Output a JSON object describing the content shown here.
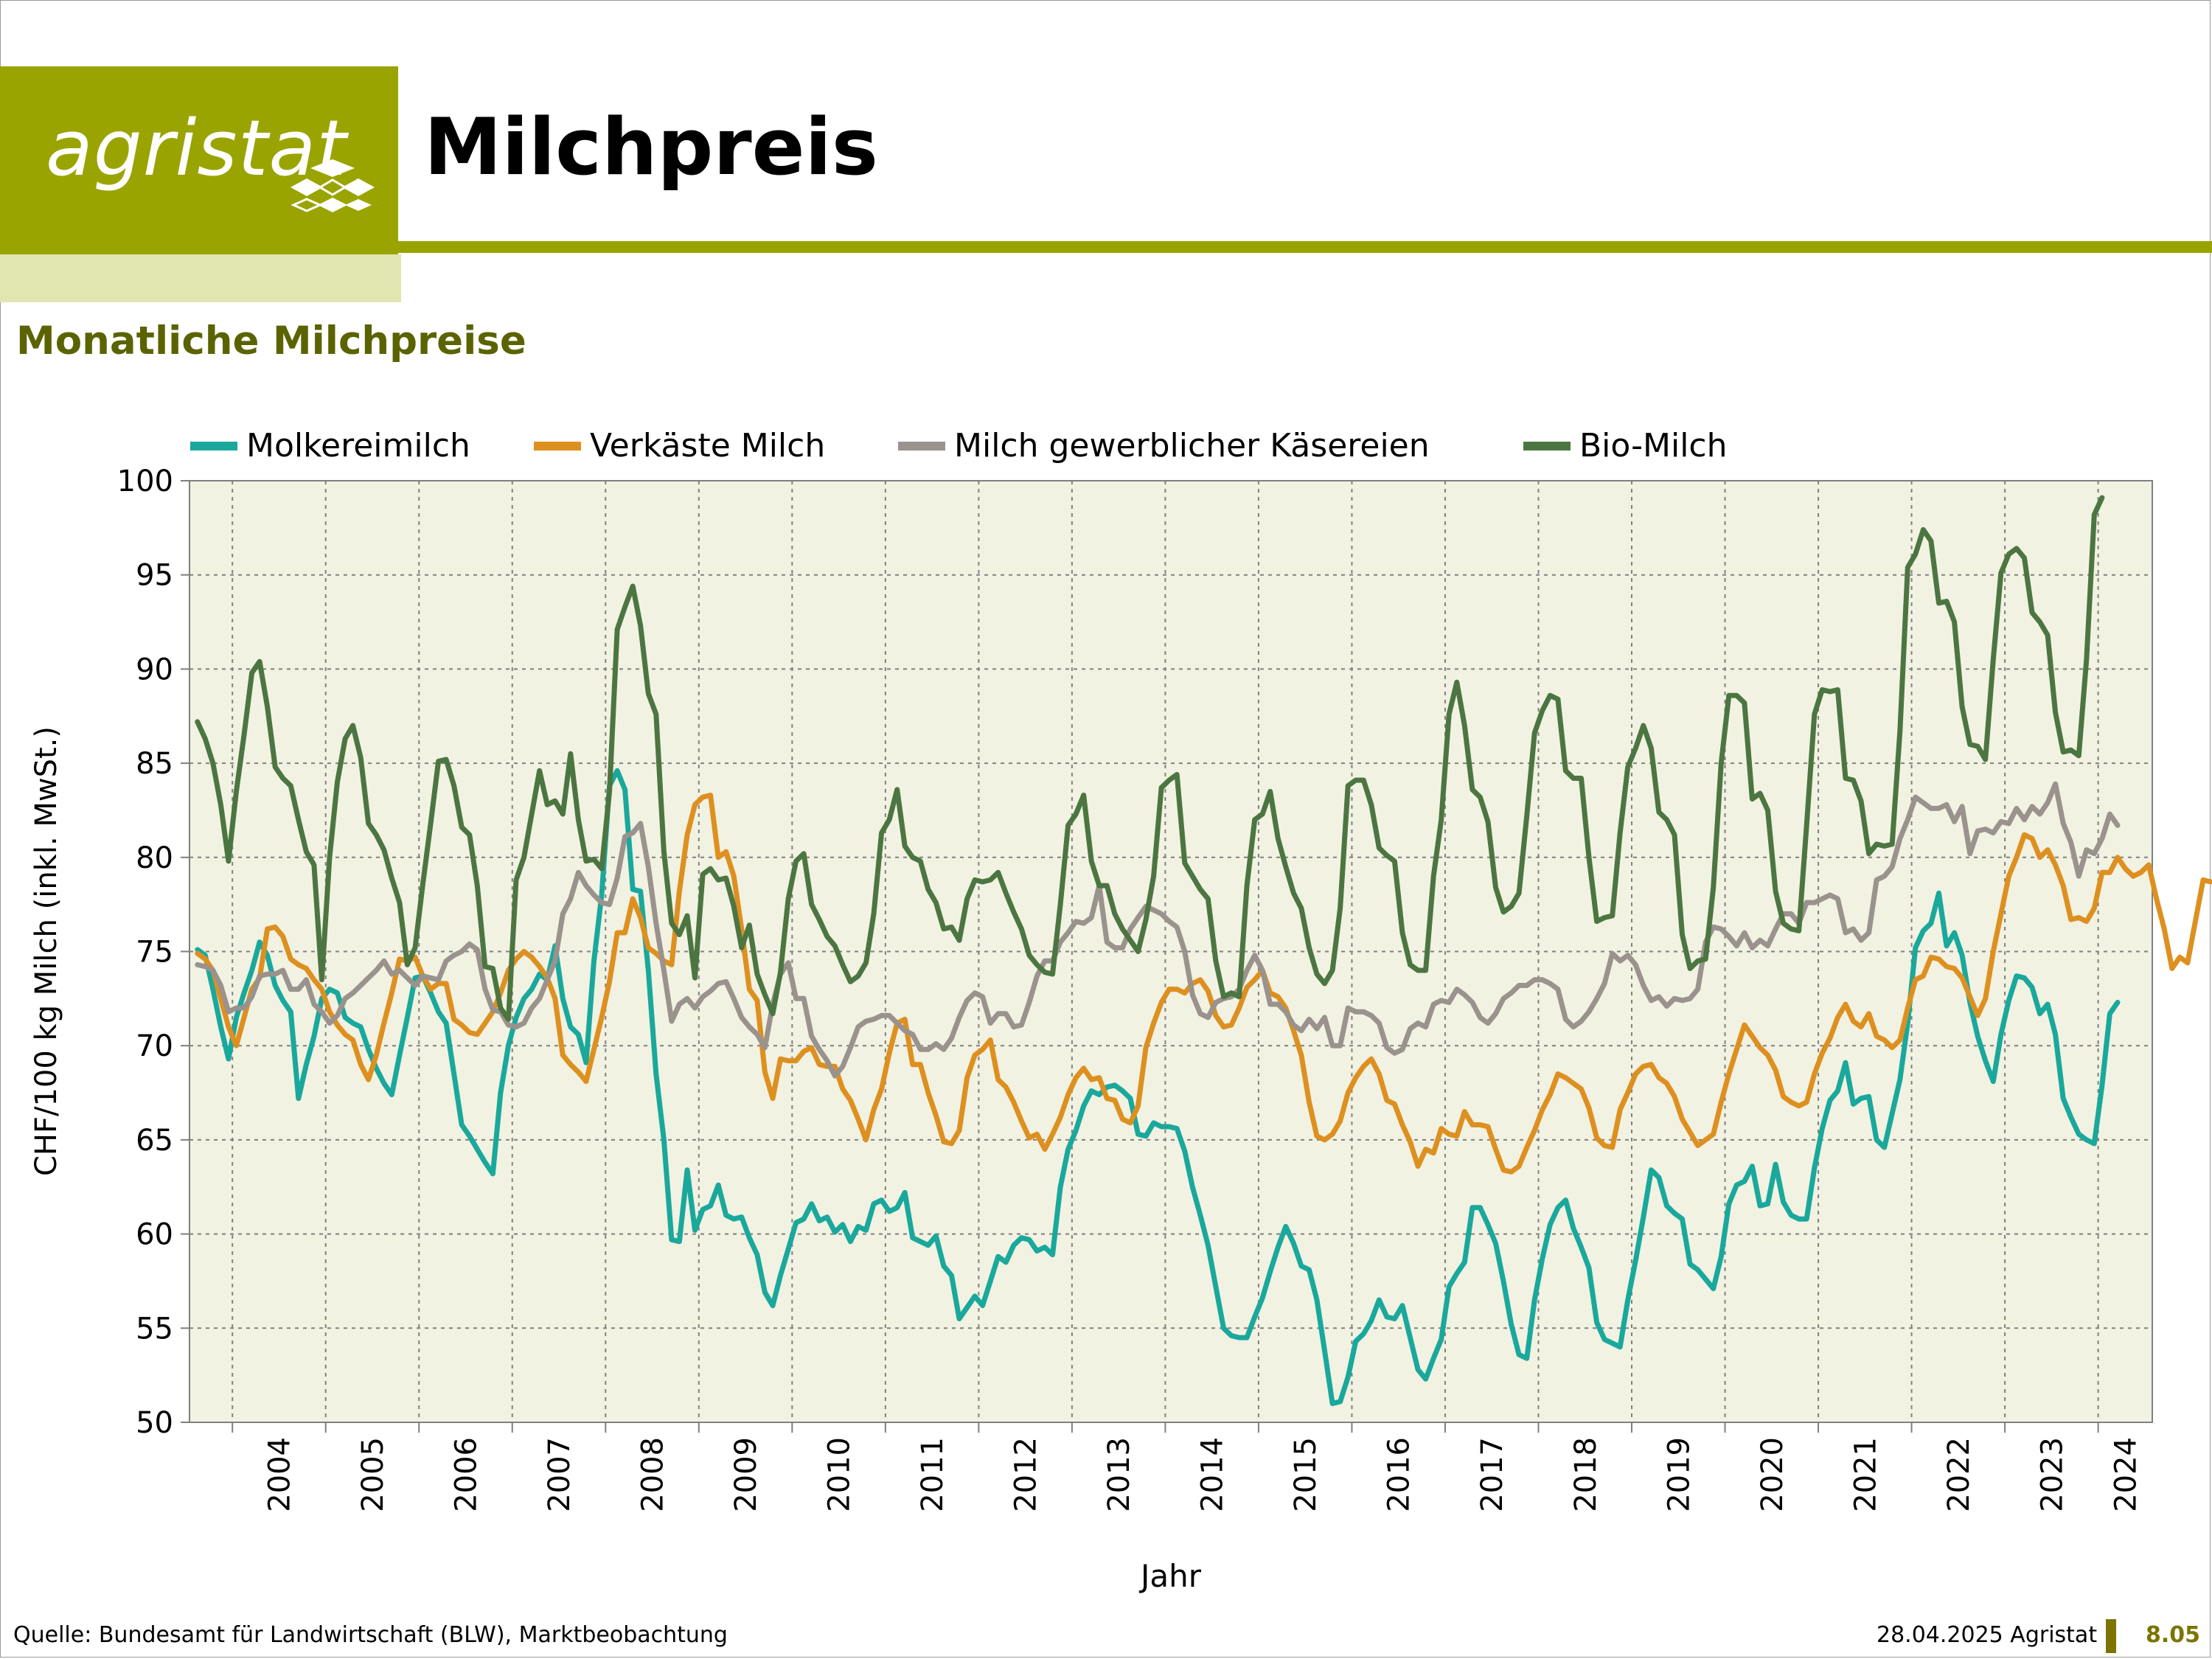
{
  "header": {
    "logo_text": "agristat",
    "title": "Milchpreis",
    "subtitle": "Monatliche Milchpreise"
  },
  "colors": {
    "olive": "#9aa400",
    "pale_olive": "#e1e5b0",
    "plot_bg": "#f2f2e2"
  },
  "footer": {
    "source": "Quelle: Bundesamt für Landwirtschaft (BLW), Marktbeobachtung",
    "date": "28.04.2025 Agristat",
    "page": "8.05"
  },
  "chart_data": {
    "type": "line",
    "title": "Monatliche Milchpreise",
    "xlabel": "Jahr",
    "ylabel": "CHF/100 kg Milch (inkl. MwSt.)",
    "ylim": [
      50,
      100
    ],
    "yticks": [
      50,
      55,
      60,
      65,
      70,
      75,
      80,
      85,
      90,
      95,
      100
    ],
    "x_start": 2003.54,
    "x_end": 2024.58,
    "year_ticks": [
      2004,
      2005,
      2006,
      2007,
      2008,
      2009,
      2010,
      2011,
      2012,
      2013,
      2014,
      2015,
      2016,
      2017,
      2018,
      2019,
      2020,
      2021,
      2022,
      2023,
      2024
    ],
    "grid": true,
    "legend": "top",
    "series": [
      {
        "name": "Molkereimilch",
        "color": "#1aa89c",
        "start_year": 2003,
        "start_month": 8,
        "values": [
          75.1,
          74.8,
          73.0,
          71.0,
          69.3,
          71.5,
          72.8,
          74.0,
          75.5,
          74.8,
          73.2,
          72.4,
          71.8,
          67.2,
          69.0,
          70.5,
          72.5,
          73.0,
          72.8,
          71.5,
          71.2,
          71.0,
          69.8,
          68.8,
          68.0,
          67.4,
          69.5,
          71.5,
          73.6,
          73.7,
          72.8,
          71.8,
          71.2,
          68.5,
          65.8,
          65.2,
          64.5,
          63.8,
          63.2,
          67.5,
          70.0,
          71.5,
          72.5,
          73.0,
          73.8,
          73.5,
          75.3,
          72.5,
          71.0,
          70.6,
          69.1,
          74.5,
          78.0,
          83.8,
          84.6,
          83.6,
          78.3,
          78.2,
          74.0,
          68.5,
          65.0,
          59.7,
          59.6,
          63.4,
          60.2,
          61.3,
          61.5,
          62.6,
          61.0,
          60.8,
          60.9,
          59.8,
          58.9,
          56.9,
          56.2,
          57.8,
          59.2,
          60.6,
          60.8,
          61.6,
          60.7,
          60.9,
          60.1,
          60.5,
          59.6,
          60.4,
          60.2,
          61.6,
          61.8,
          61.2,
          61.4,
          62.2,
          59.8,
          59.6,
          59.4,
          59.9,
          58.3,
          57.8,
          55.5,
          56.1,
          56.7,
          56.2,
          57.5,
          58.8,
          58.5,
          59.4,
          59.8,
          59.7,
          59.1,
          59.3,
          58.9,
          62.5,
          64.5,
          65.5,
          66.8,
          67.6,
          67.4,
          67.8,
          67.9,
          67.6,
          67.2,
          65.3,
          65.2,
          65.9,
          65.7,
          65.7,
          65.6,
          64.4,
          62.5,
          61.0,
          59.4,
          57.2,
          55.0,
          54.6,
          54.5,
          54.5,
          55.6,
          56.6,
          58.0,
          59.3,
          60.4,
          59.5,
          58.3,
          58.1,
          56.5,
          53.8,
          51.0,
          51.1,
          52.4,
          54.3,
          54.7,
          55.4,
          56.5,
          55.6,
          55.5,
          56.2,
          54.5,
          52.8,
          52.3,
          53.4,
          54.4,
          57.2,
          57.9,
          58.5,
          61.4,
          61.4,
          60.5,
          59.5,
          57.5,
          55.2,
          53.6,
          53.4,
          56.5,
          58.7,
          60.5,
          61.4,
          61.8,
          60.3,
          59.3,
          58.2,
          55.3,
          54.4,
          54.2,
          54.0,
          56.5,
          58.6,
          60.9,
          63.4,
          63.0,
          61.5,
          61.1,
          60.8,
          58.4,
          58.1,
          57.6,
          57.1,
          58.8,
          61.6,
          62.6,
          62.8,
          63.6,
          61.5,
          61.6,
          63.7,
          61.7,
          61.0,
          60.8,
          60.8,
          63.5,
          65.6,
          67.1,
          67.6,
          69.1,
          66.9,
          67.2,
          67.3,
          65.0,
          64.6,
          66.4,
          68.2,
          71.2,
          75.2,
          76.1,
          76.5,
          78.1,
          75.3,
          76.0,
          74.8,
          72.3,
          70.5,
          69.2,
          68.1,
          70.6,
          72.4,
          73.7,
          73.6,
          73.1,
          71.7,
          72.2,
          70.6,
          67.2,
          66.2,
          65.3,
          65.0,
          64.8,
          67.9,
          71.7,
          72.3
        ]
      },
      {
        "name": "Verkäste Milch",
        "color": "#dd9020",
        "start_year": 2003,
        "start_month": 8,
        "values": [
          74.9,
          74.6,
          74.0,
          72.5,
          71.0,
          70.0,
          71.5,
          73.0,
          73.6,
          76.2,
          76.3,
          75.8,
          74.6,
          74.3,
          74.1,
          73.5,
          73.0,
          71.8,
          71.1,
          70.6,
          70.3,
          69.0,
          68.2,
          69.5,
          71.2,
          72.8,
          74.6,
          74.5,
          74.7,
          73.7,
          73.0,
          73.3,
          73.3,
          71.4,
          71.1,
          70.7,
          70.6,
          71.2,
          71.8,
          72.8,
          74.0,
          74.6,
          75.0,
          74.7,
          74.2,
          73.6,
          72.5,
          69.5,
          69.0,
          68.6,
          68.1,
          69.8,
          71.5,
          73.4,
          76.0,
          76.0,
          77.8,
          76.8,
          75.2,
          74.9,
          74.5,
          74.3,
          78.2,
          81.2,
          82.8,
          83.2,
          83.3,
          80.0,
          80.3,
          79.0,
          76.2,
          73.0,
          72.4,
          68.6,
          67.2,
          69.3,
          69.2,
          69.2,
          69.7,
          69.9,
          69.0,
          68.9,
          68.9,
          67.7,
          67.1,
          66.1,
          65.0,
          66.6,
          67.7,
          69.6,
          71.2,
          71.4,
          69.0,
          69.0,
          67.5,
          66.3,
          64.9,
          64.8,
          65.5,
          68.3,
          69.5,
          69.8,
          70.3,
          68.2,
          67.8,
          67.0,
          66.0,
          65.1,
          65.3,
          64.5,
          65.3,
          66.2,
          67.4,
          68.3,
          68.8,
          68.2,
          68.3,
          67.2,
          67.1,
          66.1,
          65.9,
          66.8,
          69.9,
          71.2,
          72.3,
          73.0,
          73.0,
          72.8,
          73.3,
          73.5,
          72.9,
          71.6,
          71.0,
          71.1,
          72.0,
          73.1,
          73.5,
          74.0,
          72.8,
          72.6,
          72.0,
          70.8,
          69.5,
          67.0,
          65.2,
          65.0,
          65.3,
          66.0,
          67.5,
          68.3,
          68.9,
          69.3,
          68.5,
          67.1,
          66.9,
          65.8,
          64.9,
          63.6,
          64.5,
          64.3,
          65.6,
          65.3,
          65.2,
          66.5,
          65.8,
          65.8,
          65.7,
          64.5,
          63.4,
          63.3,
          63.6,
          64.6,
          65.5,
          66.6,
          67.4,
          68.5,
          68.3,
          68.0,
          67.7,
          66.7,
          65.1,
          64.7,
          64.6,
          66.6,
          67.5,
          68.5,
          68.9,
          69.0,
          68.3,
          68.0,
          67.3,
          66.1,
          65.4,
          64.7,
          65.0,
          65.3,
          67.0,
          68.5,
          69.8,
          71.1,
          70.5,
          69.9,
          69.5,
          68.7,
          67.3,
          67.0,
          66.8,
          67.0,
          68.5,
          69.6,
          70.4,
          71.5,
          72.2,
          71.3,
          71.0,
          71.7,
          70.5,
          70.3,
          69.9,
          70.3,
          72.0,
          73.5,
          73.7,
          74.7,
          74.6,
          74.2,
          74.1,
          73.6,
          72.6,
          71.6,
          72.5,
          75.0,
          77.0,
          79.0,
          80.0,
          81.2,
          81.0,
          80.0,
          80.4,
          79.6,
          78.5,
          76.7,
          76.8,
          76.6,
          77.3,
          79.2,
          79.2,
          80.0,
          79.4,
          79.0,
          79.2,
          79.6,
          77.8,
          76.2,
          74.1,
          74.7,
          74.4,
          76.6,
          78.8,
          78.7
        ]
      },
      {
        "name": "Milch gewerblicher Käsereien",
        "color": "#9a928d",
        "start_year": 2003,
        "start_month": 8,
        "values": [
          74.3,
          74.2,
          74.0,
          73.2,
          71.8,
          72.0,
          72.0,
          72.6,
          73.7,
          73.8,
          73.8,
          74.0,
          73.0,
          73.0,
          73.5,
          72.2,
          71.8,
          71.2,
          71.6,
          72.5,
          72.8,
          73.2,
          73.6,
          74.0,
          74.5,
          73.8,
          74.0,
          73.6,
          73.2,
          73.7,
          73.6,
          73.5,
          74.5,
          74.8,
          75.0,
          75.4,
          75.1,
          73.0,
          71.9,
          71.8,
          71.1,
          71.0,
          71.2,
          72.0,
          72.5,
          73.5,
          74.5,
          77.0,
          77.8,
          79.2,
          78.5,
          78.0,
          77.6,
          77.5,
          78.9,
          81.1,
          81.3,
          81.8,
          79.5,
          76.5,
          74.0,
          71.3,
          72.2,
          72.5,
          72.0,
          72.6,
          72.9,
          73.3,
          73.4,
          72.5,
          71.5,
          71.0,
          70.6,
          69.9,
          72.2,
          73.8,
          74.4,
          72.5,
          72.5,
          70.5,
          69.8,
          69.2,
          68.4,
          68.9,
          69.9,
          71.0,
          71.3,
          71.4,
          71.6,
          71.6,
          71.2,
          70.8,
          70.6,
          69.8,
          69.8,
          70.1,
          69.8,
          70.4,
          71.5,
          72.4,
          72.8,
          72.6,
          71.2,
          71.7,
          71.7,
          71.0,
          71.1,
          72.3,
          73.7,
          74.5,
          74.5,
          75.5,
          76.0,
          76.6,
          76.5,
          76.8,
          78.5,
          75.5,
          75.2,
          75.2,
          76.2,
          76.8,
          77.4,
          77.2,
          77.0,
          76.6,
          76.3,
          75.0,
          72.7,
          71.7,
          71.5,
          72.3,
          72.5,
          72.6,
          73.0,
          74.0,
          74.8,
          74.0,
          72.2,
          72.2,
          71.8,
          71.1,
          70.8,
          71.4,
          70.9,
          71.5,
          70.0,
          70.0,
          72.0,
          71.8,
          71.8,
          71.6,
          71.2,
          69.9,
          69.6,
          69.8,
          70.9,
          71.2,
          71.0,
          72.2,
          72.4,
          72.3,
          73.0,
          72.7,
          72.3,
          71.5,
          71.2,
          71.7,
          72.5,
          72.8,
          73.2,
          73.2,
          73.5,
          73.5,
          73.3,
          73.0,
          71.4,
          71.0,
          71.3,
          71.8,
          72.5,
          73.3,
          74.9,
          74.5,
          74.8,
          74.3,
          73.2,
          72.4,
          72.6,
          72.1,
          72.5,
          72.4,
          72.5,
          73.0,
          75.5,
          76.3,
          76.2,
          75.8,
          75.3,
          76.0,
          75.2,
          75.6,
          75.3,
          76.2,
          77.0,
          77.0,
          76.5,
          77.6,
          77.6,
          77.8,
          78.0,
          77.8,
          76.0,
          76.2,
          75.6,
          76.0,
          78.8,
          79.0,
          79.5,
          81.0,
          82.0,
          83.2,
          82.9,
          82.6,
          82.6,
          82.8,
          81.9,
          82.7,
          80.2,
          81.4,
          81.5,
          81.3,
          81.9,
          81.8,
          82.6,
          82.0,
          82.7,
          82.3,
          82.9,
          83.9,
          81.8,
          80.8,
          79.0,
          80.4,
          80.2,
          81.0,
          82.3,
          81.7
        ]
      },
      {
        "name": "Bio-Milch",
        "color": "#4c7641",
        "start_year": 2003,
        "start_month": 8,
        "values": [
          87.2,
          86.3,
          85.0,
          82.8,
          79.8,
          83.5,
          86.5,
          89.8,
          90.4,
          88.0,
          84.8,
          84.2,
          83.8,
          82.0,
          80.3,
          79.6,
          73.5,
          80.0,
          84.0,
          86.3,
          87.0,
          85.3,
          81.8,
          81.2,
          80.4,
          78.9,
          77.6,
          74.3,
          75.2,
          78.6,
          81.8,
          85.1,
          85.2,
          83.8,
          81.6,
          81.2,
          78.5,
          74.2,
          74.1,
          72.0,
          71.4,
          78.8,
          80.0,
          82.3,
          84.6,
          82.8,
          83.0,
          82.3,
          85.5,
          82.0,
          79.8,
          79.9,
          79.4,
          83.5,
          92.1,
          93.3,
          94.4,
          92.3,
          88.7,
          87.6,
          80.3,
          76.5,
          75.9,
          76.9,
          73.6,
          79.1,
          79.4,
          78.8,
          78.9,
          77.4,
          75.2,
          76.4,
          73.8,
          72.7,
          71.7,
          73.9,
          77.8,
          79.8,
          80.2,
          77.5,
          76.7,
          75.8,
          75.3,
          74.3,
          73.4,
          73.7,
          74.4,
          77.0,
          81.3,
          82.0,
          83.6,
          80.6,
          80.0,
          79.8,
          78.3,
          77.6,
          76.2,
          76.3,
          75.6,
          77.8,
          78.8,
          78.7,
          78.8,
          79.2,
          78.1,
          77.1,
          76.2,
          74.8,
          74.3,
          73.9,
          73.8,
          77.5,
          81.7,
          82.3,
          83.3,
          79.8,
          78.5,
          78.5,
          77.0,
          76.2,
          75.6,
          75.0,
          76.7,
          79.0,
          83.7,
          84.1,
          84.4,
          79.7,
          79.0,
          78.3,
          77.8,
          74.5,
          72.6,
          72.8,
          72.6,
          78.5,
          82.0,
          82.3,
          83.5,
          81.0,
          79.5,
          78.1,
          77.3,
          75.2,
          73.8,
          73.3,
          74.0,
          77.3,
          83.8,
          84.1,
          84.1,
          82.8,
          80.5,
          80.1,
          79.8,
          76.0,
          74.3,
          74.0,
          74.0,
          79.0,
          82.0,
          87.6,
          89.3,
          87.0,
          83.6,
          83.2,
          81.9,
          78.4,
          77.1,
          77.4,
          78.1,
          82.2,
          86.6,
          87.8,
          88.6,
          88.4,
          84.6,
          84.2,
          84.2,
          80.0,
          76.6,
          76.8,
          76.9,
          81.3,
          84.8,
          85.8,
          87.0,
          85.8,
          82.4,
          82.0,
          81.2,
          75.9,
          74.1,
          74.5,
          74.6,
          78.4,
          85.0,
          88.6,
          88.6,
          88.2,
          83.1,
          83.4,
          82.5,
          78.2,
          76.5,
          76.2,
          76.1,
          81.7,
          87.6,
          88.9,
          88.8,
          88.9,
          84.2,
          84.1,
          83.0,
          80.2,
          80.7,
          80.6,
          80.7,
          86.7,
          95.4,
          96.1,
          97.4,
          96.8,
          93.5,
          93.6,
          92.5,
          88.0,
          86.0,
          85.9,
          85.2,
          90.5,
          95.1,
          96.1,
          96.4,
          95.9,
          93.0,
          92.5,
          91.8,
          87.7,
          85.6,
          85.7,
          85.4,
          90.5,
          98.2,
          99.1
        ]
      }
    ]
  }
}
